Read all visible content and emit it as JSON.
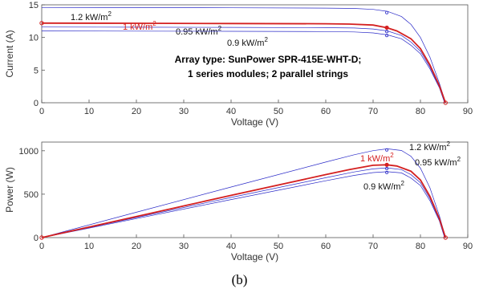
{
  "chart_data": [
    {
      "type": "line",
      "xlabel": "Voltage (V)",
      "ylabel": "Current (A)",
      "xlim": [
        0,
        90
      ],
      "ylim": [
        0,
        15
      ],
      "xticks": [
        0,
        10,
        20,
        30,
        40,
        50,
        60,
        70,
        80,
        90
      ],
      "yticks": [
        0,
        5,
        10,
        15
      ],
      "grid": false,
      "annotation": [
        "Array type: SunPower SPR-415E-WHT-D;",
        "1 series modules; 2 parallel strings"
      ],
      "series": [
        {
          "name": "1.2 kW/m",
          "sup": "2",
          "color": "#2b2bc8",
          "highlight": false,
          "x": [
            0,
            20,
            40,
            60,
            66,
            70,
            73,
            76,
            78,
            80,
            82,
            84,
            85.3
          ],
          "y": [
            14.6,
            14.58,
            14.55,
            14.5,
            14.45,
            14.3,
            14.0,
            13.2,
            12.0,
            10.0,
            7.0,
            3.0,
            0
          ],
          "mpp": [
            72.9,
            13.8
          ]
        },
        {
          "name": "1 kW/m",
          "sup": "2",
          "color": "#d42020",
          "highlight": true,
          "x": [
            0,
            20,
            40,
            60,
            65,
            70,
            72.9,
            75,
            78,
            80,
            82,
            84,
            85.3
          ],
          "y": [
            12.2,
            12.17,
            12.14,
            12.1,
            12.05,
            11.9,
            11.5,
            11.0,
            9.8,
            8.3,
            5.8,
            2.6,
            0
          ],
          "mpp": [
            72.9,
            11.5
          ]
        },
        {
          "name": "0.95 kW/m",
          "sup": "2",
          "color": "#2b2bc8",
          "highlight": false,
          "x": [
            0,
            20,
            40,
            60,
            66,
            70,
            73,
            76,
            78,
            80,
            82,
            84,
            85.2
          ],
          "y": [
            11.6,
            11.57,
            11.54,
            11.5,
            11.45,
            11.3,
            11.0,
            10.3,
            9.3,
            7.9,
            5.5,
            2.4,
            0
          ],
          "mpp": [
            72.9,
            10.9
          ]
        },
        {
          "name": "0.9 kW/m",
          "sup": "2",
          "color": "#2b2bc8",
          "highlight": false,
          "x": [
            0,
            20,
            40,
            60,
            66,
            70,
            73,
            76,
            78,
            80,
            82,
            84,
            85.1
          ],
          "y": [
            11.0,
            10.97,
            10.94,
            10.9,
            10.85,
            10.7,
            10.4,
            9.8,
            8.8,
            7.5,
            5.2,
            2.3,
            0
          ],
          "mpp": [
            72.9,
            10.3
          ]
        }
      ]
    },
    {
      "type": "line",
      "xlabel": "Voltage (V)",
      "ylabel": "Power (W)",
      "xlim": [
        0,
        90
      ],
      "ylim": [
        0,
        1100
      ],
      "xticks": [
        0,
        10,
        20,
        30,
        40,
        50,
        60,
        70,
        80,
        90
      ],
      "yticks": [
        0,
        500,
        1000
      ],
      "grid": false,
      "series": [
        {
          "name": "1.2 kW/m",
          "sup": "2",
          "color": "#2b2bc8",
          "highlight": false,
          "x": [
            0,
            20,
            40,
            60,
            66,
            70,
            73,
            76,
            78,
            80,
            82,
            84,
            85.3
          ],
          "y": [
            0,
            292,
            582,
            870,
            954,
            1001,
            1022,
            1003,
            936,
            800,
            574,
            252,
            0
          ],
          "mpp": [
            72.9,
            1010
          ]
        },
        {
          "name": "1 kW/m",
          "sup": "2",
          "color": "#d42020",
          "highlight": true,
          "x": [
            0,
            20,
            40,
            60,
            65,
            70,
            72.9,
            75,
            78,
            80,
            82,
            84,
            85.3
          ],
          "y": [
            0,
            243,
            486,
            726,
            783,
            833,
            838,
            825,
            764,
            664,
            476,
            218,
            0
          ],
          "mpp": [
            72.9,
            838
          ]
        },
        {
          "name": "0.95 kW/m",
          "sup": "2",
          "color": "#2b2bc8",
          "highlight": false,
          "x": [
            0,
            20,
            40,
            60,
            66,
            70,
            73,
            76,
            78,
            80,
            82,
            84,
            85.2
          ],
          "y": [
            0,
            231,
            462,
            690,
            756,
            791,
            803,
            783,
            725,
            632,
            451,
            202,
            0
          ],
          "mpp": [
            72.9,
            795
          ]
        },
        {
          "name": "0.9 kW/m",
          "sup": "2",
          "color": "#2b2bc8",
          "highlight": false,
          "x": [
            0,
            20,
            40,
            60,
            66,
            70,
            73,
            76,
            78,
            80,
            82,
            84,
            85.1
          ],
          "y": [
            0,
            219,
            438,
            654,
            716,
            749,
            759,
            745,
            686,
            600,
            426,
            193,
            0
          ],
          "mpp": [
            72.9,
            750
          ]
        }
      ]
    }
  ],
  "caption": "(b)"
}
